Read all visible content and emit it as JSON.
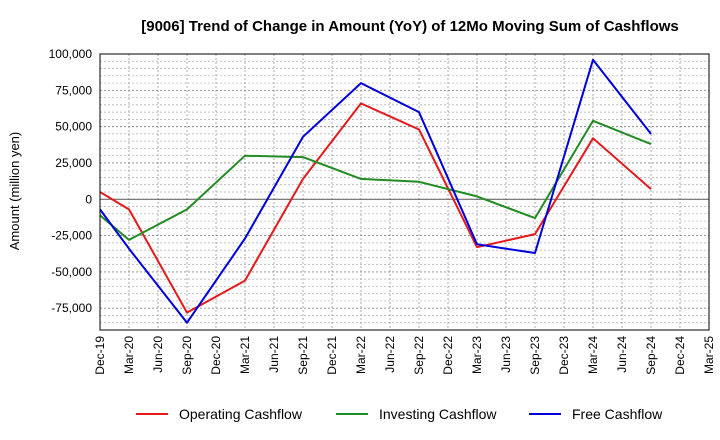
{
  "chart_data": {
    "type": "line",
    "title": "[9006]  Trend of Change in Amount (YoY) of 12Mo Moving Sum of Cashflows",
    "xlabel": "",
    "ylabel": "Amount (million yen)",
    "ylim": [
      -90000,
      100000
    ],
    "yticks": [
      100000,
      75000,
      50000,
      25000,
      0,
      -25000,
      -50000,
      -75000
    ],
    "ytick_labels": [
      "100,000",
      "75,000",
      "50,000",
      "25,000",
      "0",
      "-25,000",
      "-50,000",
      "-75,000"
    ],
    "categories": [
      "Dec-19",
      "Mar-20",
      "Jun-20",
      "Sep-20",
      "Dec-20",
      "Mar-21",
      "Jun-21",
      "Sep-21",
      "Dec-21",
      "Mar-22",
      "Jun-22",
      "Sep-22",
      "Dec-22",
      "Mar-23",
      "Jun-23",
      "Sep-23",
      "Dec-23",
      "Mar-24",
      "Jun-24",
      "Sep-24",
      "Dec-24",
      "Mar-25"
    ],
    "series": [
      {
        "name": "Operating Cashflow",
        "color": "#e41a1c",
        "values": [
          5000,
          -7000,
          null,
          -78000,
          null,
          -56000,
          null,
          14000,
          null,
          66000,
          null,
          48000,
          null,
          -33000,
          null,
          -24000,
          null,
          42000,
          null,
          7000,
          null,
          null
        ]
      },
      {
        "name": "Investing Cashflow",
        "color": "#228b22",
        "values": [
          -11000,
          -28000,
          null,
          -7000,
          null,
          30000,
          null,
          29000,
          null,
          14000,
          null,
          12000,
          null,
          2000,
          null,
          -13000,
          null,
          54000,
          null,
          38000,
          null,
          null
        ]
      },
      {
        "name": "Free Cashflow",
        "color": "#0000dd",
        "values": [
          -7000,
          -34000,
          null,
          -85000,
          null,
          -27000,
          null,
          43000,
          null,
          80000,
          null,
          60000,
          null,
          -31000,
          null,
          -37000,
          null,
          96000,
          null,
          45000,
          null,
          null
        ]
      }
    ],
    "grid": true,
    "legend_position": "bottom"
  }
}
